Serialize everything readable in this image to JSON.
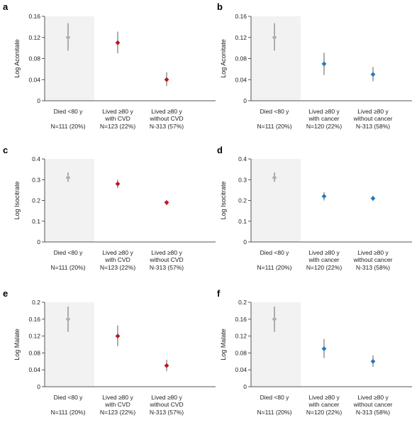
{
  "chart_data": [
    {
      "panel": "a",
      "type": "scatter",
      "ylabel": "Log Aconitate",
      "ylim": [
        0,
        0.16
      ],
      "yticks": [
        "0",
        "0.04",
        "0.08",
        "0.12",
        "0.16"
      ],
      "groups": [
        {
          "label1": "Died <80 y",
          "label2": "",
          "n": "N=111 (20%)",
          "value": 0.12,
          "lo": 0.095,
          "hi": 0.147,
          "color": "#b0b0b0"
        },
        {
          "label1": "Lived ≥80 y",
          "label2": "with CVD",
          "n": "N=123 (22%)",
          "value": 0.11,
          "lo": 0.09,
          "hi": 0.131,
          "color": "#c0141c"
        },
        {
          "label1": "Lived ≥80 y",
          "label2": "without CVD",
          "n": "N-313 (57%)",
          "value": 0.04,
          "lo": 0.028,
          "hi": 0.054,
          "color": "#c0141c"
        }
      ]
    },
    {
      "panel": "b",
      "type": "scatter",
      "ylabel": "Log Aconitate",
      "ylim": [
        0,
        0.16
      ],
      "yticks": [
        "0",
        "0.04",
        "0.08",
        "0.12",
        "0.16"
      ],
      "groups": [
        {
          "label1": "Died <80 y",
          "label2": "",
          "n": "N=111 (20%)",
          "value": 0.12,
          "lo": 0.095,
          "hi": 0.147,
          "color": "#b0b0b0"
        },
        {
          "label1": "Lived ≥80 y",
          "label2": "with cancer",
          "n": "N=120 (22%)",
          "value": 0.07,
          "lo": 0.049,
          "hi": 0.091,
          "color": "#1f7ac4"
        },
        {
          "label1": "Lived ≥80 y",
          "label2": "without cancer",
          "n": "N-313 (58%)",
          "value": 0.05,
          "lo": 0.037,
          "hi": 0.064,
          "color": "#1f7ac4"
        }
      ]
    },
    {
      "panel": "c",
      "type": "scatter",
      "ylabel": "Log Isocitrate",
      "ylim": [
        0,
        0.4
      ],
      "yticks": [
        "0",
        "0.1",
        "0.2",
        "0.3",
        "0.4"
      ],
      "groups": [
        {
          "label1": "Died <80 y",
          "label2": "",
          "n": "N=111 (20%)",
          "value": 0.31,
          "lo": 0.29,
          "hi": 0.335,
          "color": "#b0b0b0"
        },
        {
          "label1": "Lived ≥80 y",
          "label2": "with CVD",
          "n": "N=123 (22%)",
          "value": 0.28,
          "lo": 0.26,
          "hi": 0.3,
          "color": "#c0141c"
        },
        {
          "label1": "Lived ≥80 y",
          "label2": "without CVD",
          "n": "N-313 (57%)",
          "value": 0.19,
          "lo": 0.178,
          "hi": 0.2,
          "color": "#c0141c"
        }
      ]
    },
    {
      "panel": "d",
      "type": "scatter",
      "ylabel": "Log Isocitrate",
      "ylim": [
        0,
        0.4
      ],
      "yticks": [
        "0",
        "0.1",
        "0.2",
        "0.3",
        "0.4"
      ],
      "groups": [
        {
          "label1": "Died <80 y",
          "label2": "",
          "n": "N=111 (20%)",
          "value": 0.31,
          "lo": 0.29,
          "hi": 0.335,
          "color": "#b0b0b0"
        },
        {
          "label1": "Lived ≥80 y",
          "label2": "with cancer",
          "n": "N=120 (22%)",
          "value": 0.22,
          "lo": 0.2,
          "hi": 0.24,
          "color": "#1f7ac4"
        },
        {
          "label1": "Lived ≥80 y",
          "label2": "without cancer",
          "n": "N-313 (58%)",
          "value": 0.21,
          "lo": 0.198,
          "hi": 0.222,
          "color": "#1f7ac4"
        }
      ]
    },
    {
      "panel": "e",
      "type": "scatter",
      "ylabel": "Log Malate",
      "ylim": [
        0,
        0.2
      ],
      "yticks": [
        "0",
        "0.04",
        "0.08",
        "0.12",
        "0.16",
        "0.2"
      ],
      "groups": [
        {
          "label1": "Died <80 y",
          "label2": "",
          "n": "N=111 (20%)",
          "value": 0.16,
          "lo": 0.13,
          "hi": 0.19,
          "color": "#b0b0b0"
        },
        {
          "label1": "Lived ≥80 y",
          "label2": "with CVD",
          "n": "N=123 (22%)",
          "value": 0.12,
          "lo": 0.096,
          "hi": 0.145,
          "color": "#c0141c"
        },
        {
          "label1": "Lived ≥80 y",
          "label2": "without CVD",
          "n": "N-313 (57%)",
          "value": 0.05,
          "lo": 0.037,
          "hi": 0.064,
          "color": "#c0141c"
        }
      ]
    },
    {
      "panel": "f",
      "type": "scatter",
      "ylabel": "Log Malate",
      "ylim": [
        0,
        0.2
      ],
      "yticks": [
        "0",
        "0.04",
        "0.08",
        "0.12",
        "0.16",
        "0.2"
      ],
      "groups": [
        {
          "label1": "Died <80 y",
          "label2": "",
          "n": "N=111 (20%)",
          "value": 0.16,
          "lo": 0.13,
          "hi": 0.19,
          "color": "#b0b0b0"
        },
        {
          "label1": "Lived ≥80 y",
          "label2": "with cancer",
          "n": "N=120 (22%)",
          "value": 0.09,
          "lo": 0.068,
          "hi": 0.113,
          "color": "#1f7ac4"
        },
        {
          "label1": "Lived ≥80 y",
          "label2": "without cancer",
          "n": "N-313 (58%)",
          "value": 0.06,
          "lo": 0.047,
          "hi": 0.074,
          "color": "#1f7ac4"
        }
      ]
    }
  ]
}
